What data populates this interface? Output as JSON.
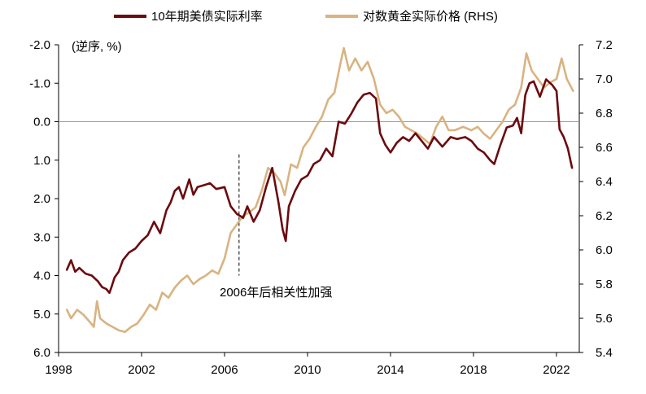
{
  "colors": {
    "real_yield": "#6B0A0F",
    "gold": "#D9B382",
    "axis": "#000000",
    "zero_line": "#9a9a9a",
    "annotation_line": "#000000"
  },
  "chart_data": {
    "type": "line",
    "title": "",
    "legend_position": "top",
    "ylabel_left": "(逆序, %)",
    "xlabel": "",
    "x_ticks": [
      "1998",
      "2002",
      "2006",
      "2010",
      "2014",
      "2018",
      "2022"
    ],
    "x_range": [
      1998,
      2023.1
    ],
    "y_left": {
      "inverted": true,
      "range": [
        -2.0,
        6.0
      ],
      "ticks": [
        "-2.0",
        "-1.0",
        "0.0",
        "1.0",
        "2.0",
        "3.0",
        "4.0",
        "5.0",
        "6.0"
      ],
      "tick_values": [
        -2,
        -1,
        0,
        1,
        2,
        3,
        4,
        5,
        6
      ]
    },
    "y_right": {
      "range": [
        5.4,
        7.2
      ],
      "ticks": [
        "7.2",
        "7.0",
        "6.8",
        "6.6",
        "6.4",
        "6.2",
        "6.0",
        "5.8",
        "5.6",
        "5.4"
      ],
      "tick_values": [
        7.2,
        7.0,
        6.8,
        6.6,
        6.4,
        6.2,
        6.0,
        5.8,
        5.6,
        5.4
      ]
    },
    "zero_line": 0,
    "annotation": {
      "text": "2006年后相关性加强",
      "x": 2006.7
    },
    "series": [
      {
        "name": "10年期美债实际利率",
        "axis": "left",
        "points": [
          [
            1998.4,
            3.85
          ],
          [
            1998.6,
            3.6
          ],
          [
            1998.8,
            3.9
          ],
          [
            1999.0,
            3.8
          ],
          [
            1999.3,
            3.95
          ],
          [
            1999.6,
            4.0
          ],
          [
            1999.9,
            4.15
          ],
          [
            2000.1,
            4.3
          ],
          [
            2000.3,
            4.35
          ],
          [
            2000.45,
            4.45
          ],
          [
            2000.55,
            4.3
          ],
          [
            2000.7,
            4.05
          ],
          [
            2000.9,
            3.9
          ],
          [
            2001.1,
            3.6
          ],
          [
            2001.4,
            3.4
          ],
          [
            2001.7,
            3.3
          ],
          [
            2002.0,
            3.1
          ],
          [
            2002.3,
            2.95
          ],
          [
            2002.6,
            2.6
          ],
          [
            2002.9,
            2.9
          ],
          [
            2003.2,
            2.3
          ],
          [
            2003.4,
            2.1
          ],
          [
            2003.6,
            1.8
          ],
          [
            2003.8,
            1.7
          ],
          [
            2004.0,
            2.0
          ],
          [
            2004.3,
            1.5
          ],
          [
            2004.5,
            1.9
          ],
          [
            2004.7,
            1.7
          ],
          [
            2005.0,
            1.65
          ],
          [
            2005.3,
            1.6
          ],
          [
            2005.6,
            1.75
          ],
          [
            2006.0,
            1.7
          ],
          [
            2006.3,
            2.2
          ],
          [
            2006.6,
            2.4
          ],
          [
            2006.9,
            2.5
          ],
          [
            2007.1,
            2.2
          ],
          [
            2007.4,
            2.6
          ],
          [
            2007.7,
            2.3
          ],
          [
            2008.0,
            1.7
          ],
          [
            2008.3,
            1.2
          ],
          [
            2008.6,
            2.1
          ],
          [
            2008.8,
            2.8
          ],
          [
            2008.95,
            3.1
          ],
          [
            2009.1,
            2.2
          ],
          [
            2009.4,
            1.8
          ],
          [
            2009.7,
            1.5
          ],
          [
            2010.0,
            1.4
          ],
          [
            2010.3,
            1.1
          ],
          [
            2010.6,
            1.0
          ],
          [
            2010.9,
            0.7
          ],
          [
            2011.2,
            0.9
          ],
          [
            2011.5,
            0.0
          ],
          [
            2011.8,
            0.05
          ],
          [
            2012.1,
            -0.2
          ],
          [
            2012.4,
            -0.5
          ],
          [
            2012.7,
            -0.7
          ],
          [
            2013.0,
            -0.75
          ],
          [
            2013.3,
            -0.6
          ],
          [
            2013.5,
            0.3
          ],
          [
            2013.75,
            0.6
          ],
          [
            2014.0,
            0.8
          ],
          [
            2014.3,
            0.55
          ],
          [
            2014.6,
            0.4
          ],
          [
            2014.9,
            0.5
          ],
          [
            2015.2,
            0.3
          ],
          [
            2015.5,
            0.5
          ],
          [
            2015.8,
            0.7
          ],
          [
            2016.1,
            0.4
          ],
          [
            2016.5,
            0.65
          ],
          [
            2016.9,
            0.4
          ],
          [
            2017.2,
            0.45
          ],
          [
            2017.6,
            0.4
          ],
          [
            2017.9,
            0.5
          ],
          [
            2018.2,
            0.7
          ],
          [
            2018.5,
            0.8
          ],
          [
            2018.8,
            1.0
          ],
          [
            2019.0,
            1.1
          ],
          [
            2019.3,
            0.6
          ],
          [
            2019.6,
            0.15
          ],
          [
            2019.9,
            0.1
          ],
          [
            2020.1,
            -0.1
          ],
          [
            2020.3,
            0.3
          ],
          [
            2020.5,
            -0.7
          ],
          [
            2020.7,
            -1.0
          ],
          [
            2020.9,
            -1.05
          ],
          [
            2021.2,
            -0.65
          ],
          [
            2021.5,
            -1.1
          ],
          [
            2021.8,
            -0.95
          ],
          [
            2022.0,
            -0.8
          ],
          [
            2022.15,
            0.2
          ],
          [
            2022.35,
            0.4
          ],
          [
            2022.55,
            0.7
          ],
          [
            2022.75,
            1.2
          ]
        ]
      },
      {
        "name": "对数黄金实际价格 (RHS)",
        "axis": "right",
        "points": [
          [
            1998.4,
            5.65
          ],
          [
            1998.6,
            5.6
          ],
          [
            1998.9,
            5.65
          ],
          [
            1999.2,
            5.62
          ],
          [
            1999.5,
            5.58
          ],
          [
            1999.7,
            5.55
          ],
          [
            1999.85,
            5.7
          ],
          [
            2000.0,
            5.6
          ],
          [
            2000.3,
            5.57
          ],
          [
            2000.6,
            5.55
          ],
          [
            2000.9,
            5.53
          ],
          [
            2001.2,
            5.52
          ],
          [
            2001.5,
            5.55
          ],
          [
            2001.8,
            5.57
          ],
          [
            2002.1,
            5.62
          ],
          [
            2002.4,
            5.68
          ],
          [
            2002.7,
            5.65
          ],
          [
            2003.0,
            5.75
          ],
          [
            2003.3,
            5.72
          ],
          [
            2003.6,
            5.78
          ],
          [
            2003.9,
            5.82
          ],
          [
            2004.2,
            5.85
          ],
          [
            2004.5,
            5.8
          ],
          [
            2004.8,
            5.83
          ],
          [
            2005.1,
            5.85
          ],
          [
            2005.4,
            5.88
          ],
          [
            2005.7,
            5.86
          ],
          [
            2006.0,
            5.95
          ],
          [
            2006.3,
            6.1
          ],
          [
            2006.6,
            6.15
          ],
          [
            2006.9,
            6.2
          ],
          [
            2007.2,
            6.22
          ],
          [
            2007.5,
            6.25
          ],
          [
            2007.8,
            6.35
          ],
          [
            2008.1,
            6.48
          ],
          [
            2008.4,
            6.45
          ],
          [
            2008.7,
            6.4
          ],
          [
            2008.9,
            6.32
          ],
          [
            2009.2,
            6.5
          ],
          [
            2009.5,
            6.48
          ],
          [
            2009.8,
            6.6
          ],
          [
            2010.1,
            6.65
          ],
          [
            2010.4,
            6.72
          ],
          [
            2010.7,
            6.78
          ],
          [
            2011.0,
            6.88
          ],
          [
            2011.3,
            6.92
          ],
          [
            2011.6,
            7.1
          ],
          [
            2011.75,
            7.18
          ],
          [
            2012.0,
            7.05
          ],
          [
            2012.3,
            7.12
          ],
          [
            2012.6,
            7.05
          ],
          [
            2012.9,
            7.1
          ],
          [
            2013.2,
            7.0
          ],
          [
            2013.5,
            6.85
          ],
          [
            2013.8,
            6.8
          ],
          [
            2014.1,
            6.82
          ],
          [
            2014.4,
            6.78
          ],
          [
            2014.7,
            6.72
          ],
          [
            2015.0,
            6.7
          ],
          [
            2015.3,
            6.68
          ],
          [
            2015.6,
            6.65
          ],
          [
            2015.9,
            6.62
          ],
          [
            2016.2,
            6.72
          ],
          [
            2016.5,
            6.78
          ],
          [
            2016.8,
            6.7
          ],
          [
            2017.1,
            6.7
          ],
          [
            2017.5,
            6.72
          ],
          [
            2017.9,
            6.7
          ],
          [
            2018.2,
            6.72
          ],
          [
            2018.5,
            6.68
          ],
          [
            2018.8,
            6.65
          ],
          [
            2019.1,
            6.7
          ],
          [
            2019.4,
            6.75
          ],
          [
            2019.7,
            6.82
          ],
          [
            2020.0,
            6.85
          ],
          [
            2020.3,
            6.95
          ],
          [
            2020.55,
            7.15
          ],
          [
            2020.8,
            7.05
          ],
          [
            2021.1,
            7.0
          ],
          [
            2021.4,
            6.95
          ],
          [
            2021.7,
            6.98
          ],
          [
            2022.0,
            7.0
          ],
          [
            2022.25,
            7.12
          ],
          [
            2022.5,
            7.0
          ],
          [
            2022.8,
            6.93
          ]
        ]
      }
    ]
  }
}
